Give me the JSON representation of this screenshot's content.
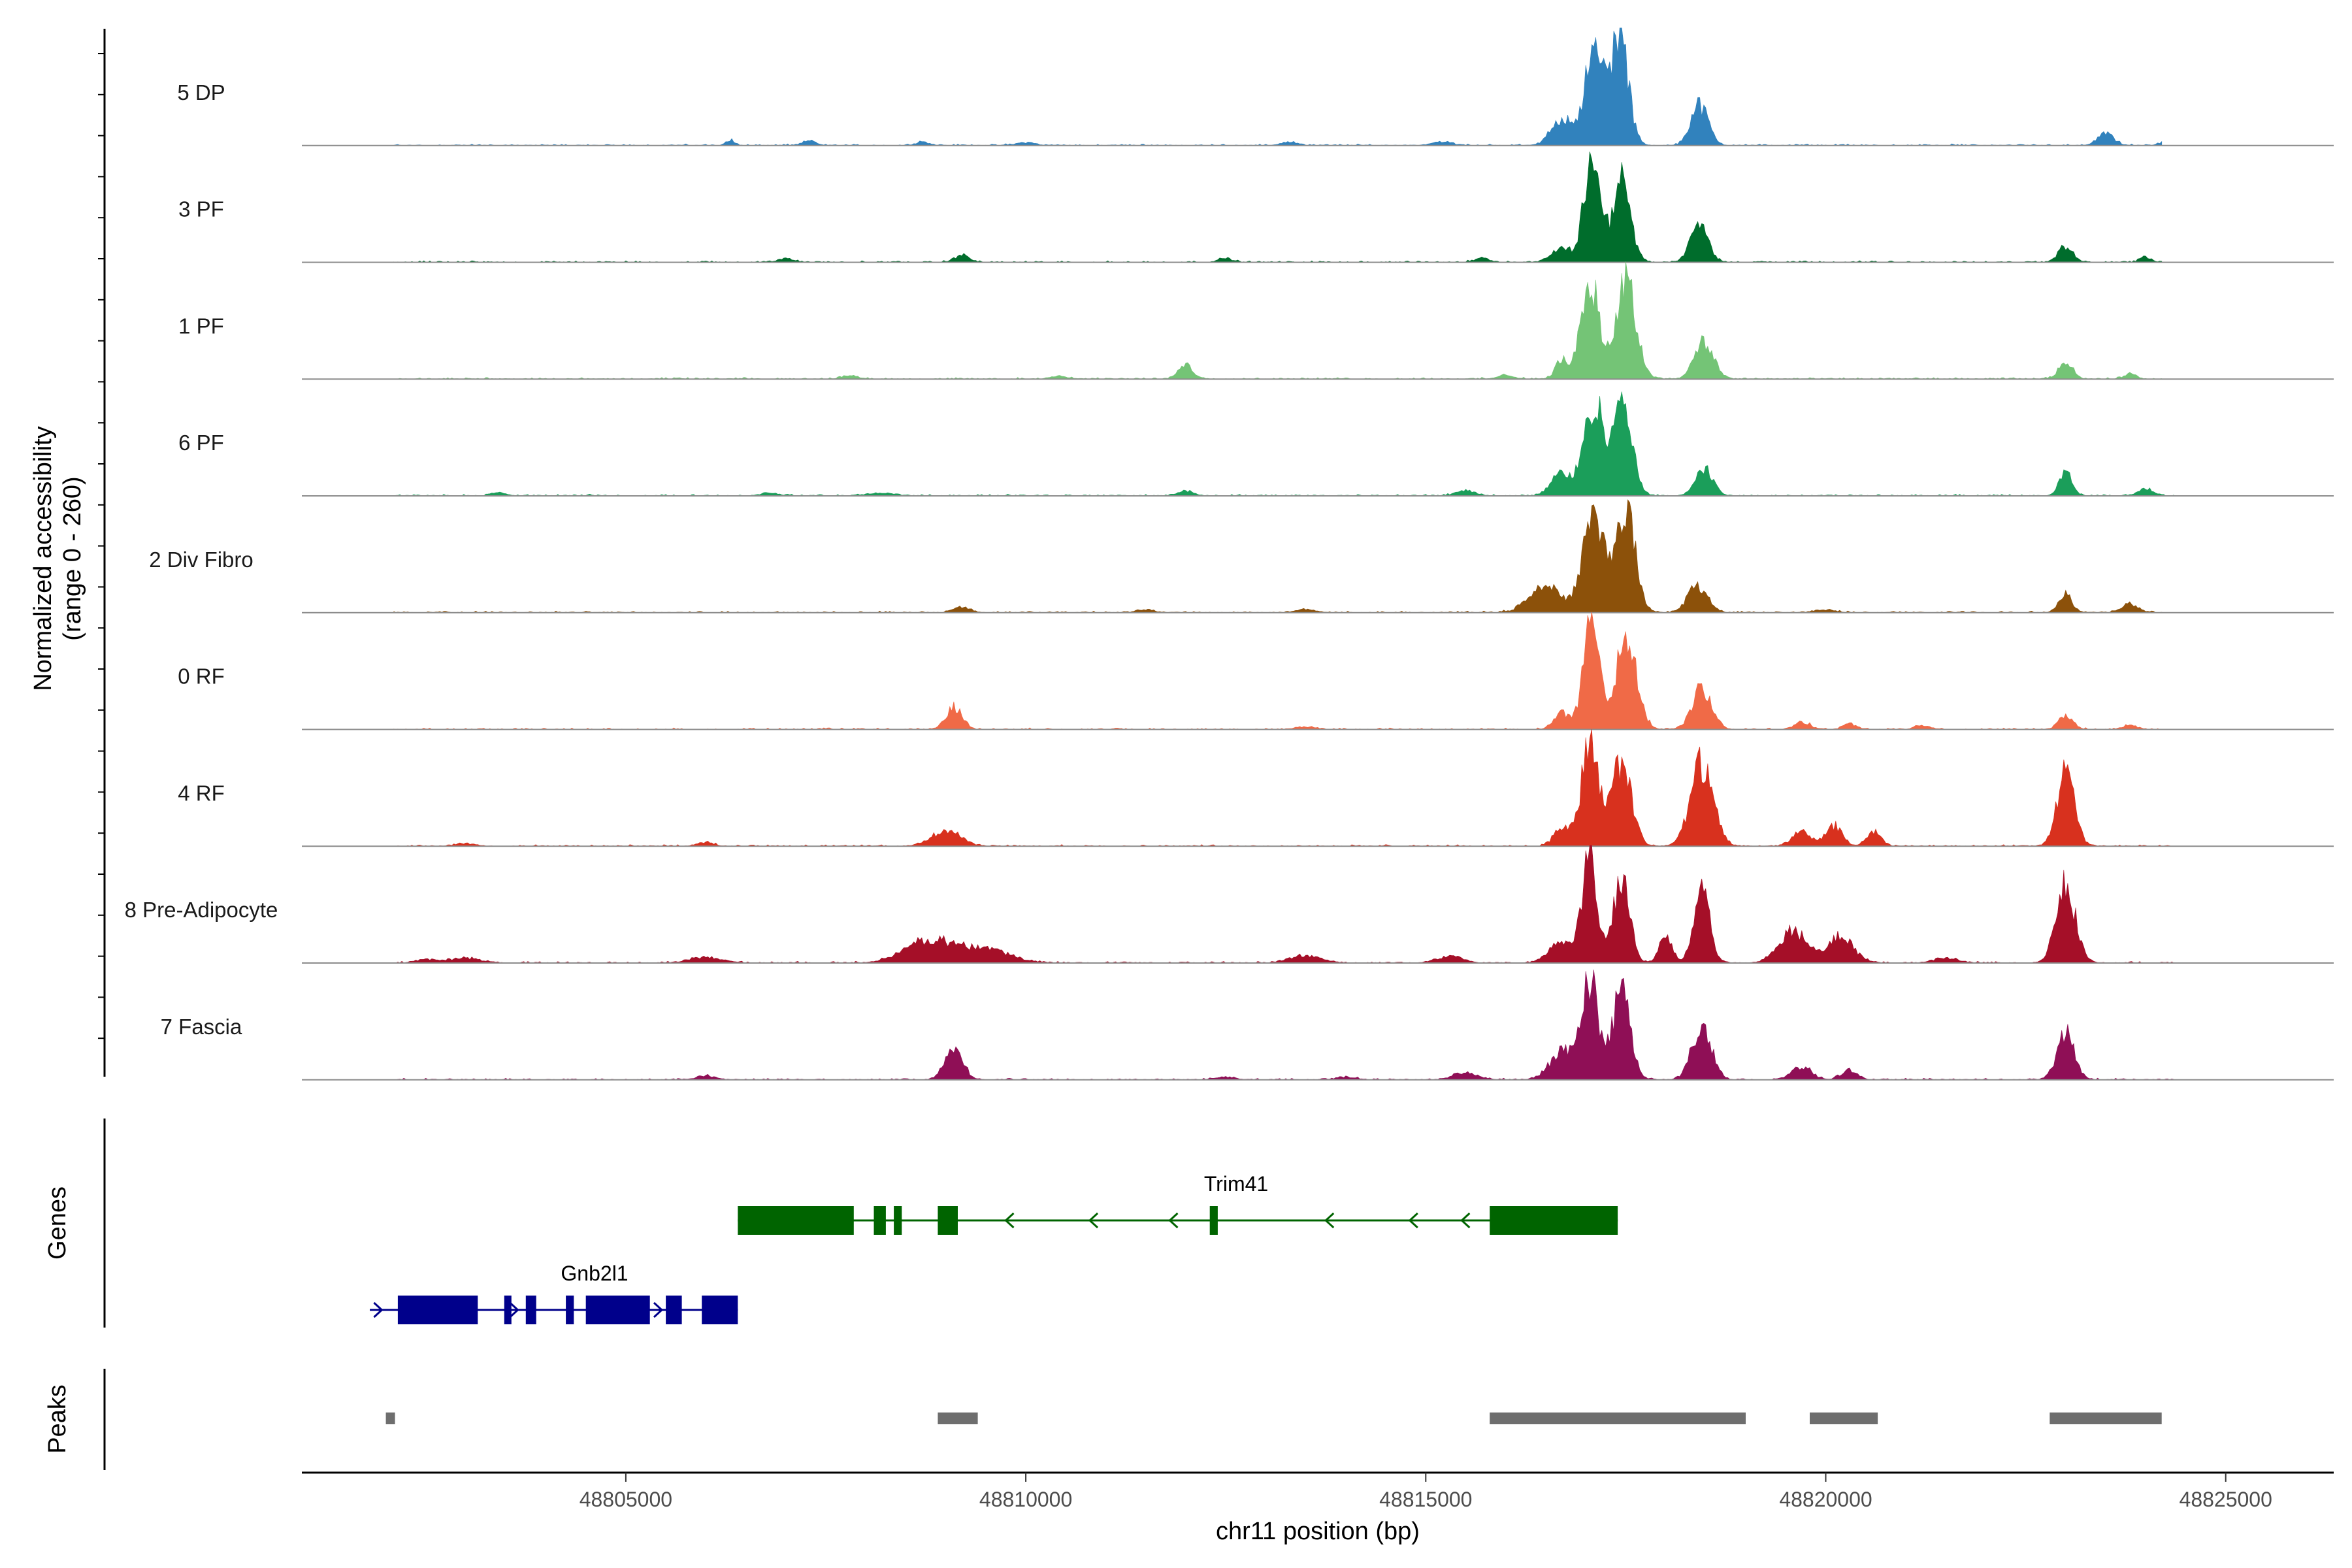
{
  "chart_data": {
    "type": "area",
    "title": "",
    "chromosome": "chr11",
    "xlabel": "chr11 position (bp)",
    "ylabel": [
      "Normalized accessibility",
      "(range 0 - 260)"
    ],
    "ylim": [
      0,
      260
    ],
    "xlim": [
      48800950,
      48826350
    ],
    "x_ticks": [
      "48805000",
      "48810000",
      "48815000",
      "48820000",
      "48825000"
    ],
    "tracks": [
      {
        "name": "5 DP",
        "color": "#3182BD",
        "data_start": 48802100,
        "data_end": 48824200,
        "peaks": [
          [
            48816700,
            60,
            130
          ],
          [
            48817100,
            200,
            120
          ],
          [
            48817420,
            240,
            110
          ],
          [
            48818420,
            90,
            110
          ],
          [
            48823500,
            25,
            100
          ],
          [
            48824200,
            5,
            60
          ],
          [
            48806300,
            12,
            50
          ],
          [
            48807300,
            10,
            80
          ],
          [
            48808700,
            8,
            80
          ],
          [
            48810000,
            6,
            120
          ],
          [
            48813300,
            8,
            100
          ],
          [
            48815200,
            8,
            120
          ]
        ]
      },
      {
        "name": "3 PF",
        "color": "#006D2C",
        "data_start": 48802100,
        "data_end": 48824200,
        "peaks": [
          [
            48816700,
            30,
            130
          ],
          [
            48817080,
            240,
            100
          ],
          [
            48817450,
            180,
            110
          ],
          [
            48818420,
            80,
            110
          ],
          [
            48823000,
            35,
            90
          ],
          [
            48824000,
            12,
            70
          ],
          [
            48809200,
            15,
            90
          ],
          [
            48807000,
            8,
            90
          ],
          [
            48812500,
            8,
            90
          ],
          [
            48815700,
            10,
            90
          ]
        ]
      },
      {
        "name": "1 PF",
        "color": "#74C476",
        "data_start": 48802100,
        "data_end": 48824200,
        "peaks": [
          [
            48816700,
            40,
            80
          ],
          [
            48817050,
            220,
            110
          ],
          [
            48817500,
            210,
            130
          ],
          [
            48818480,
            80,
            120
          ],
          [
            48823000,
            35,
            90
          ],
          [
            48823800,
            12,
            70
          ],
          [
            48812000,
            30,
            90
          ],
          [
            48807800,
            8,
            100
          ],
          [
            48810400,
            6,
            100
          ],
          [
            48816000,
            8,
            100
          ]
        ]
      },
      {
        "name": "6 PF",
        "color": "#1B9E5A",
        "data_start": 48802100,
        "data_end": 48824350,
        "peaks": [
          [
            48816700,
            50,
            130
          ],
          [
            48817100,
            200,
            120
          ],
          [
            48817450,
            210,
            120
          ],
          [
            48818480,
            60,
            110
          ],
          [
            48823000,
            50,
            80
          ],
          [
            48824000,
            15,
            100
          ],
          [
            48808200,
            6,
            150
          ],
          [
            48812000,
            10,
            100
          ],
          [
            48806800,
            6,
            120
          ],
          [
            48803400,
            8,
            80
          ],
          [
            48815500,
            12,
            120
          ]
        ]
      },
      {
        "name": "2 Div Fibro",
        "color": "#8C510A",
        "data_start": 48802100,
        "data_end": 48824200,
        "peaks": [
          [
            48816500,
            60,
            200
          ],
          [
            48817100,
            230,
            130
          ],
          [
            48817500,
            220,
            120
          ],
          [
            48818400,
            60,
            120
          ],
          [
            48823000,
            40,
            80
          ],
          [
            48823800,
            20,
            100
          ],
          [
            48809200,
            12,
            100
          ],
          [
            48811500,
            6,
            100
          ],
          [
            48813500,
            6,
            120
          ],
          [
            48820000,
            6,
            120
          ]
        ]
      },
      {
        "name": "0 RF",
        "color": "#F06A47",
        "data_start": 48802100,
        "data_end": 48824200,
        "peaks": [
          [
            48816700,
            35,
            100
          ],
          [
            48817070,
            235,
            100
          ],
          [
            48817500,
            200,
            130
          ],
          [
            48818450,
            90,
            120
          ],
          [
            48823000,
            30,
            90
          ],
          [
            48809100,
            50,
            100
          ],
          [
            48819700,
            15,
            100
          ],
          [
            48820300,
            12,
            80
          ],
          [
            48821200,
            8,
            90
          ],
          [
            48823800,
            10,
            80
          ],
          [
            48813500,
            6,
            120
          ]
        ]
      },
      {
        "name": "4 RF",
        "color": "#D8311E",
        "data_start": 48802100,
        "data_end": 48824350,
        "peaks": [
          [
            48816700,
            40,
            100
          ],
          [
            48817050,
            220,
            110
          ],
          [
            48817450,
            190,
            120
          ],
          [
            48818450,
            180,
            140
          ],
          [
            48823000,
            160,
            110
          ],
          [
            48819700,
            30,
            120
          ],
          [
            48820100,
            45,
            100
          ],
          [
            48820600,
            30,
            90
          ],
          [
            48809000,
            35,
            180
          ],
          [
            48806000,
            8,
            100
          ],
          [
            48803000,
            6,
            120
          ]
        ]
      },
      {
        "name": "8 Pre-Adipocyte",
        "color": "#A50F28",
        "data_start": 48802100,
        "data_end": 48824350,
        "peaks": [
          [
            48816700,
            50,
            150
          ],
          [
            48817050,
            240,
            90
          ],
          [
            48817450,
            200,
            100
          ],
          [
            48818000,
            60,
            80
          ],
          [
            48818450,
            150,
            100
          ],
          [
            48819600,
            70,
            180
          ],
          [
            48820200,
            60,
            150
          ],
          [
            48823000,
            170,
            120
          ],
          [
            48808800,
            50,
            300
          ],
          [
            48809500,
            30,
            300
          ],
          [
            48806000,
            12,
            200
          ],
          [
            48803000,
            10,
            200
          ],
          [
            48813500,
            15,
            200
          ],
          [
            48815300,
            15,
            150
          ],
          [
            48802500,
            8,
            120
          ],
          [
            48821500,
            10,
            150
          ]
        ]
      },
      {
        "name": "7 Fascia",
        "color": "#8F0F56",
        "data_start": 48802100,
        "data_end": 48824350,
        "peaks": [
          [
            48816700,
            60,
            150
          ],
          [
            48817050,
            220,
            110
          ],
          [
            48817450,
            200,
            110
          ],
          [
            48818450,
            120,
            120
          ],
          [
            48823000,
            100,
            110
          ],
          [
            48809100,
            70,
            110
          ],
          [
            48819700,
            30,
            120
          ],
          [
            48820300,
            20,
            100
          ],
          [
            48806000,
            8,
            120
          ],
          [
            48812500,
            6,
            120
          ],
          [
            48814000,
            6,
            120
          ],
          [
            48815500,
            15,
            150
          ]
        ]
      }
    ],
    "genes": [
      {
        "name": "Trim41",
        "strand": "-",
        "color": "#006400",
        "start": 48806400,
        "end": 48817400,
        "exons": [
          [
            48806400,
            48807850
          ],
          [
            48808100,
            48808250
          ],
          [
            48808350,
            48808450
          ],
          [
            48808900,
            48809150
          ],
          [
            48812300,
            48812400
          ],
          [
            48815800,
            48817400
          ]
        ],
        "arrows": [
          48809750,
          48810800,
          48811800,
          48813750,
          48814800,
          48815450
        ]
      },
      {
        "name": "Gnb2l1",
        "strand": "+",
        "color": "#00008B",
        "start": 48801800,
        "end": 48806400,
        "exons": [
          [
            48802150,
            48803150
          ],
          [
            48803480,
            48803570
          ],
          [
            48803750,
            48803880
          ],
          [
            48804250,
            48804350
          ],
          [
            48804500,
            48805300
          ],
          [
            48805500,
            48805700
          ],
          [
            48805950,
            48806400
          ]
        ],
        "arrows": [
          48801950,
          48803650,
          48805450
        ]
      }
    ],
    "peaks": [
      [
        48802000,
        48802100
      ],
      [
        48808900,
        48809400
      ],
      [
        48815800,
        48819000
      ],
      [
        48819800,
        48820650
      ],
      [
        48822800,
        48824200
      ]
    ],
    "peak_color": "#6E6E6E",
    "gene_track_label": "Genes",
    "peak_track_label": "Peaks"
  }
}
